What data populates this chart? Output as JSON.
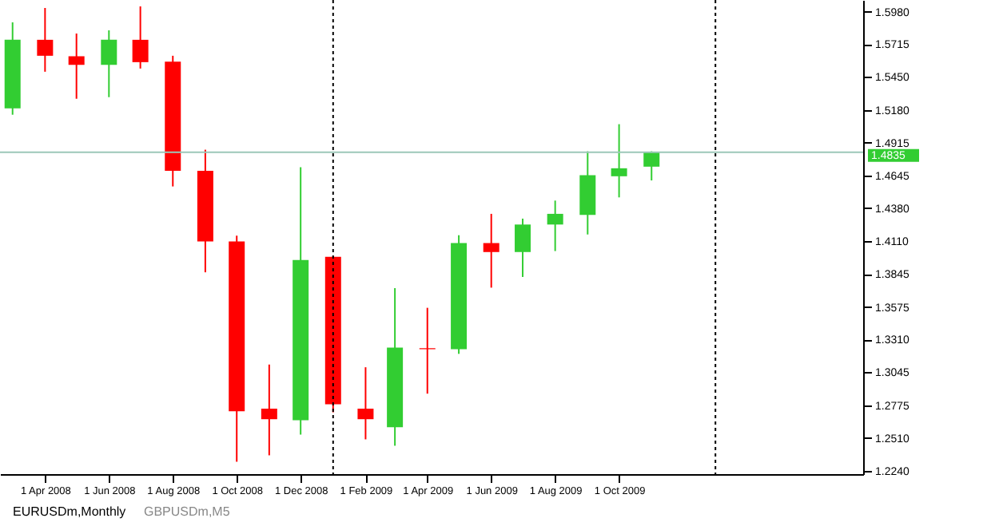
{
  "chart_data": {
    "type": "candlestick",
    "x": [
      "2008-03",
      "2008-04",
      "2008-05",
      "2008-06",
      "2008-07",
      "2008-08",
      "2008-09",
      "2008-10",
      "2008-11",
      "2008-12",
      "2009-01",
      "2009-02",
      "2009-03",
      "2009-04",
      "2009-05",
      "2009-06",
      "2009-07",
      "2009-08",
      "2009-09",
      "2009-10",
      "2009-11"
    ],
    "ohlc": [
      [
        1.5193,
        1.5893,
        1.5141,
        1.5751
      ],
      [
        1.5751,
        1.601,
        1.5491,
        1.5621
      ],
      [
        1.5617,
        1.5802,
        1.5271,
        1.5547
      ],
      [
        1.5547,
        1.5828,
        1.5284,
        1.5751
      ],
      [
        1.5751,
        1.6023,
        1.5517,
        1.5569
      ],
      [
        1.5573,
        1.5621,
        1.4557,
        1.4684
      ],
      [
        1.4684,
        1.4856,
        1.3858,
        1.4109
      ],
      [
        1.4109,
        1.4157,
        1.2316,
        1.2727
      ],
      [
        1.2748,
        1.3107,
        1.2368,
        1.2662
      ],
      [
        1.2653,
        1.4714,
        1.2537,
        1.3958
      ],
      [
        1.3984,
        1.399,
        1.2718,
        1.2783
      ],
      [
        1.2748,
        1.3085,
        1.2498,
        1.2662
      ],
      [
        1.2597,
        1.3729,
        1.2446,
        1.3245
      ],
      [
        1.324,
        1.3569,
        1.287,
        1.3232
      ],
      [
        1.3232,
        1.416,
        1.3194,
        1.4096
      ],
      [
        1.4096,
        1.4334,
        1.3733,
        1.4023
      ],
      [
        1.4023,
        1.4295,
        1.382,
        1.4247
      ],
      [
        1.4247,
        1.4442,
        1.4031,
        1.4334
      ],
      [
        1.4325,
        1.4843,
        1.4166,
        1.4649
      ],
      [
        1.464,
        1.5064,
        1.4468,
        1.4705
      ],
      [
        1.4718,
        1.4843,
        1.4606,
        1.4835
      ]
    ],
    "colors": [
      "#32cd32",
      "#ff0000",
      "#ff0000",
      "#32cd32",
      "#ff0000",
      "#ff0000",
      "#ff0000",
      "#ff0000",
      "#ff0000",
      "#32cd32",
      "#ff0000",
      "#ff0000",
      "#32cd32",
      "#ff0000",
      "#32cd32",
      "#ff0000",
      "#32cd32",
      "#32cd32",
      "#32cd32",
      "#32cd32",
      "#32cd32"
    ],
    "xlim": [
      "2008-02-18",
      "2010-05-22"
    ],
    "xticks": [
      {
        "value": "2008-04",
        "label": "1 Apr 2008"
      },
      {
        "value": "2008-06",
        "label": "1 Jun 2008"
      },
      {
        "value": "2008-08",
        "label": "1 Aug 2008"
      },
      {
        "value": "2008-10",
        "label": "1 Oct 2008"
      },
      {
        "value": "2008-12",
        "label": "1 Dec 2008"
      },
      {
        "value": "2009-02",
        "label": "1 Feb 2009"
      },
      {
        "value": "2009-04",
        "label": "1 Apr 2009"
      },
      {
        "value": "2009-06",
        "label": "1 Jun 2009"
      },
      {
        "value": "2009-08",
        "label": "1 Aug 2009"
      },
      {
        "value": "2009-10",
        "label": "1 Oct 2009"
      }
    ],
    "ylim": [
      1.2215,
      1.6075
    ],
    "yticks": [
      {
        "value": 1.598,
        "label": "1.5980"
      },
      {
        "value": 1.5715,
        "label": "1.5715"
      },
      {
        "value": 1.545,
        "label": "1.5450"
      },
      {
        "value": 1.518,
        "label": "1.5180"
      },
      {
        "value": 1.4915,
        "label": "1.4915"
      },
      {
        "value": 1.4645,
        "label": "1.4645"
      },
      {
        "value": 1.438,
        "label": "1.4380"
      },
      {
        "value": 1.411,
        "label": "1.4110"
      },
      {
        "value": 1.3845,
        "label": "1.3845"
      },
      {
        "value": 1.3575,
        "label": "1.3575"
      },
      {
        "value": 1.331,
        "label": "1.3310"
      },
      {
        "value": 1.3045,
        "label": "1.3045"
      },
      {
        "value": 1.2775,
        "label": "1.2775"
      },
      {
        "value": 1.251,
        "label": "1.2510"
      },
      {
        "value": 1.224,
        "label": "1.2240"
      }
    ],
    "ref_lines": [
      {
        "axis": "y",
        "value": 1.4835,
        "label": "1.4835",
        "color": "#9cc7b8"
      },
      {
        "axis": "x",
        "value": "2009-01",
        "color": "#000000",
        "line_style": "dotted"
      },
      {
        "axis": "x",
        "value": "2010-01",
        "color": "#000000",
        "line_style": "dotted"
      }
    ],
    "annotations": [
      "EURUSDm,Monthly",
      "GBPUSDm,M5"
    ],
    "marker": "none"
  }
}
